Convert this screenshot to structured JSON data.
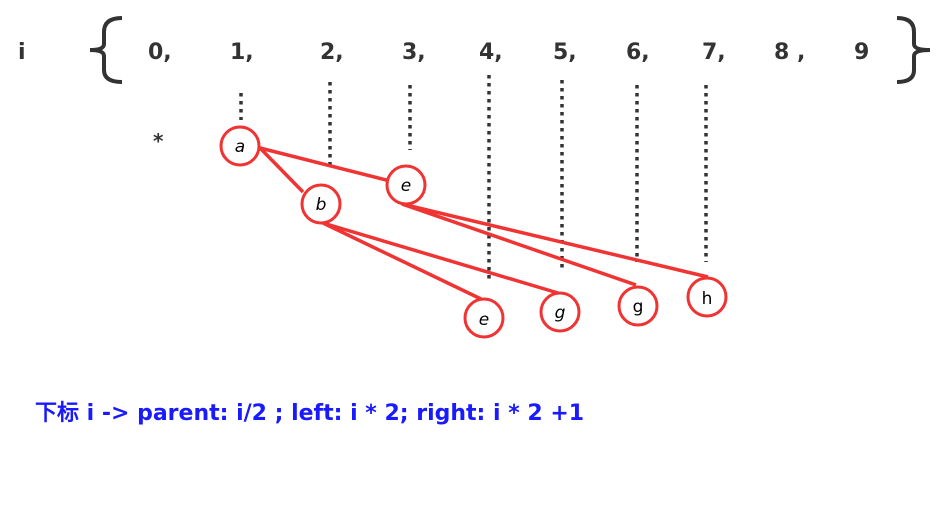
{
  "index_label": "i",
  "indices": [
    "0,",
    "1,",
    "2,",
    "3,",
    "4,",
    "5,",
    "6,",
    "7,",
    "8 ,",
    "9"
  ],
  "placeholder_mark": "*",
  "nodes": [
    "a",
    "e",
    "b",
    "e",
    "g",
    "g",
    "h"
  ],
  "caption": "下标 i -> parent: i/2 ; left: i * 2; right: i * 2 +1",
  "colors": {
    "node_stroke": "#f03333",
    "caption": "#1a1aff",
    "text": "#333333"
  }
}
